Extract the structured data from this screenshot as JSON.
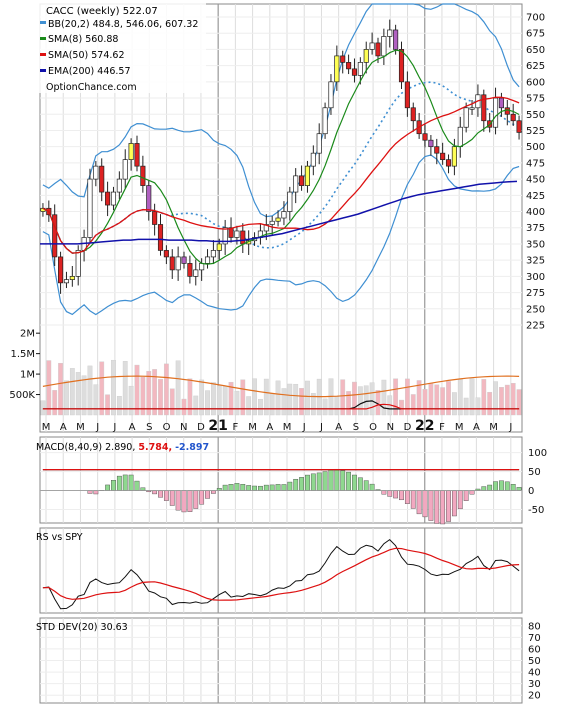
{
  "chart_data": [
    {
      "type": "candlestick",
      "ticker": "CACC (weekly)",
      "last": "522.07",
      "site": "OptionChance.com",
      "ylim": [
        225,
        700
      ],
      "y_ticks": [
        225,
        250,
        275,
        300,
        325,
        350,
        375,
        400,
        425,
        450,
        475,
        500,
        525,
        550,
        575,
        600,
        625,
        650,
        675,
        700
      ],
      "x_ticks": [
        "M",
        "A",
        "M",
        "J",
        "J",
        "A",
        "S",
        "O",
        "N",
        "D",
        "21",
        "F",
        "M",
        "A",
        "M",
        "J",
        "J",
        "A",
        "S",
        "O",
        "N",
        "D",
        "22",
        "F",
        "M",
        "A",
        "M",
        "J"
      ],
      "legend": [
        {
          "label": "BB(20,2)",
          "values": "484.8, 546.06, 607.32",
          "color": "#3f8fd2"
        },
        {
          "label": "SMA(8)",
          "values": "560.88",
          "color": "#1a8a1a"
        },
        {
          "label": "SMA(50)",
          "values": "574.62",
          "color": "#dd1111"
        },
        {
          "label": "EMA(200)",
          "values": "446.57",
          "color": "#1111aa"
        }
      ],
      "close": [
        405,
        395,
        330,
        290,
        295,
        300,
        340,
        360,
        450,
        470,
        430,
        410,
        430,
        450,
        480,
        505,
        470,
        440,
        400,
        380,
        340,
        330,
        310,
        330,
        320,
        300,
        310,
        320,
        330,
        340,
        350,
        375,
        360,
        370,
        350,
        355,
        360,
        370,
        380,
        385,
        390,
        400,
        430,
        455,
        440,
        470,
        490,
        520,
        560,
        600,
        640,
        630,
        620,
        610,
        630,
        650,
        660,
        640,
        670,
        680,
        650,
        600,
        560,
        540,
        520,
        510,
        500,
        490,
        480,
        470,
        500,
        530,
        560,
        560,
        580,
        540,
        530,
        575,
        560,
        550,
        540,
        522
      ],
      "ema200": [
        350,
        350,
        350,
        350,
        350,
        350,
        351,
        352,
        353,
        354,
        355,
        356,
        356,
        357,
        357,
        357,
        357,
        356,
        356,
        356,
        356,
        355,
        355,
        354,
        354,
        354,
        355,
        356,
        358,
        360,
        362,
        364,
        366,
        369,
        372,
        375,
        378,
        381,
        384,
        387,
        390,
        393,
        396,
        400,
        404,
        408,
        412,
        416,
        420,
        423,
        426,
        428,
        430,
        432,
        434,
        436,
        438,
        440,
        442,
        443,
        444,
        445,
        446,
        446.5
      ]
    },
    {
      "type": "bar",
      "name": "volume",
      "y_ticks": [
        "2M",
        "1.5M",
        "1M",
        "500K"
      ],
      "ylim": [
        0,
        2200000
      ]
    },
    {
      "type": "line",
      "name": "MACD(8,40,9)",
      "values_text": [
        "2.890,",
        "5.784,",
        "-2.897"
      ],
      "ylim": [
        -75,
        120
      ],
      "y_ticks": [
        100,
        50,
        0,
        -50
      ]
    },
    {
      "type": "line",
      "name": "RS vs SPY"
    },
    {
      "type": "line",
      "name": "STD DEV(20)",
      "value_text": "30.63",
      "ylim": [
        15,
        85
      ],
      "y_ticks": [
        80,
        70,
        60,
        50,
        40,
        30,
        20
      ]
    }
  ]
}
